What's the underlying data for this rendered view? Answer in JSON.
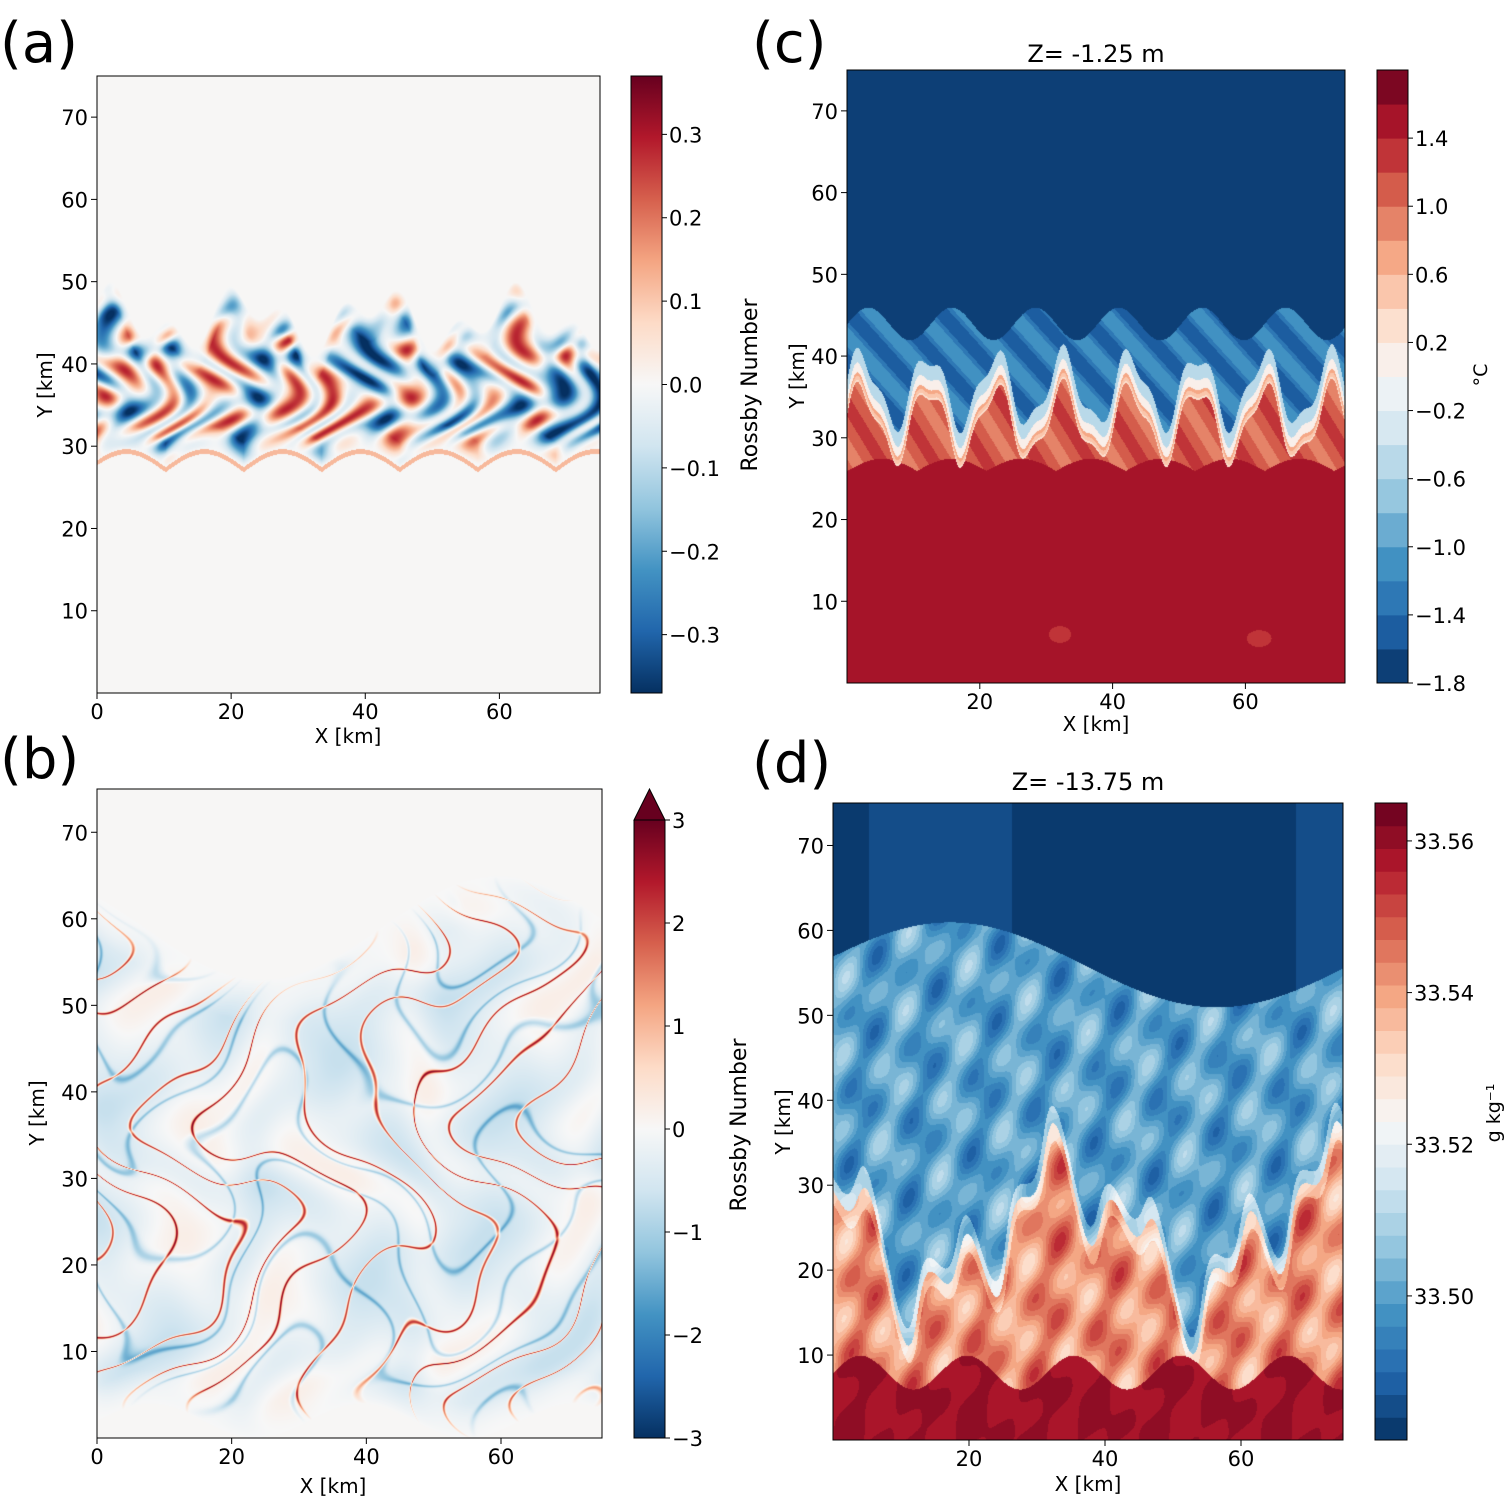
{
  "colormap": "RdBu_r",
  "colormap_stops": [
    "#053061",
    "#2166ac",
    "#4393c3",
    "#92c5de",
    "#d1e5f0",
    "#f7f7f7",
    "#fddbc7",
    "#f4a582",
    "#d6604d",
    "#b2182b",
    "#67001f"
  ],
  "chart_data": [
    {
      "id": "a",
      "type": "heatmap",
      "panel_label": "(a)",
      "title": "",
      "xlabel": "X [km]",
      "ylabel": "Y [km]",
      "xlim": [
        0,
        75
      ],
      "ylim": [
        0,
        75
      ],
      "xticks": [
        0,
        20,
        40,
        60
      ],
      "xtick_labels": [
        "0",
        "20",
        "40",
        "60"
      ],
      "yticks": [
        10,
        20,
        30,
        40,
        50,
        60,
        70
      ],
      "ytick_labels": [
        "10",
        "20",
        "30",
        "40",
        "50",
        "60",
        "70"
      ],
      "colorbar": {
        "label": "Rossby Number",
        "range": [
          -0.37,
          0.37
        ],
        "continuous": true,
        "extend_max": false,
        "ticks": [
          -0.3,
          -0.2,
          -0.1,
          0.0,
          0.1,
          0.2,
          0.3
        ],
        "tick_labels": [
          "−0.3",
          "−0.2",
          "−0.1",
          "0.0",
          "0.1",
          "0.2",
          "0.3"
        ]
      },
      "field": "Rossby number; eddying front between Y≈26 and Y≈47 km, near zero elsewhere"
    },
    {
      "id": "b",
      "type": "heatmap",
      "panel_label": "(b)",
      "title": "",
      "xlabel": "X [km]",
      "ylabel": "Y [km]",
      "xlim": [
        0,
        75
      ],
      "ylim": [
        0,
        75
      ],
      "xticks": [
        0,
        20,
        40,
        60
      ],
      "xtick_labels": [
        "0",
        "20",
        "40",
        "60"
      ],
      "yticks": [
        10,
        20,
        30,
        40,
        50,
        60,
        70
      ],
      "ytick_labels": [
        "10",
        "20",
        "30",
        "40",
        "50",
        "60",
        "70"
      ],
      "colorbar": {
        "label": "Rossby Number",
        "range": [
          -3,
          3
        ],
        "continuous": true,
        "extend_max": true,
        "ticks": [
          -3,
          -2,
          -1,
          0,
          1,
          2,
          3
        ],
        "tick_labels": [
          "−3",
          "−2",
          "−1",
          "0",
          "1",
          "2",
          "3"
        ]
      },
      "field": "Rossby number; filamentary turbulence between Y≈3 and Y≈62 km"
    },
    {
      "id": "c",
      "type": "heatmap",
      "panel_label": "(c)",
      "title": "Z= -1.25 m",
      "xlabel": "X [km]",
      "ylabel": "Y [km]",
      "xlim": [
        0,
        75
      ],
      "ylim": [
        0,
        75
      ],
      "xticks": [
        20,
        40,
        60
      ],
      "xtick_labels": [
        "20",
        "40",
        "60"
      ],
      "yticks": [
        10,
        20,
        30,
        40,
        50,
        60,
        70
      ],
      "ytick_labels": [
        "10",
        "20",
        "30",
        "40",
        "50",
        "60",
        "70"
      ],
      "colorbar": {
        "label": "°C",
        "range": [
          -1.8,
          1.8
        ],
        "continuous": false,
        "n_levels": 18,
        "extend_max": false,
        "ticks": [
          -1.8,
          -1.4,
          -1.0,
          -0.6,
          -0.2,
          0.2,
          0.6,
          1.0,
          1.4
        ],
        "tick_labels": [
          "−1.8",
          "−1.4",
          "−1.0",
          "−0.6",
          "−0.2",
          "0.2",
          "0.6",
          "1.0",
          "1.4"
        ]
      },
      "field": "Temperature; cold (−1.8) north of a wavy front at Y≈30–45 km, warm (≈1.6) south"
    },
    {
      "id": "d",
      "type": "heatmap",
      "panel_label": "(d)",
      "title": "Z= -13.75 m",
      "xlabel": "X [km]",
      "ylabel": "Y [km]",
      "xlim": [
        0,
        75
      ],
      "ylim": [
        0,
        75
      ],
      "xticks": [
        20,
        40,
        60
      ],
      "xtick_labels": [
        "20",
        "40",
        "60"
      ],
      "yticks": [
        10,
        20,
        30,
        40,
        50,
        60,
        70
      ],
      "ytick_labels": [
        "10",
        "20",
        "30",
        "40",
        "50",
        "60",
        "70"
      ],
      "colorbar": {
        "label": "g kg⁻¹",
        "range": [
          33.481,
          33.565
        ],
        "continuous": false,
        "n_levels": 28,
        "extend_max": false,
        "ticks": [
          33.5,
          33.52,
          33.54,
          33.56
        ],
        "tick_labels": [
          "33.50",
          "33.52",
          "33.54",
          "33.56"
        ]
      },
      "field": "Salinity; fresh (blue) north, salty (red) south, turbulent mixing region Y≈10–60 km"
    }
  ]
}
